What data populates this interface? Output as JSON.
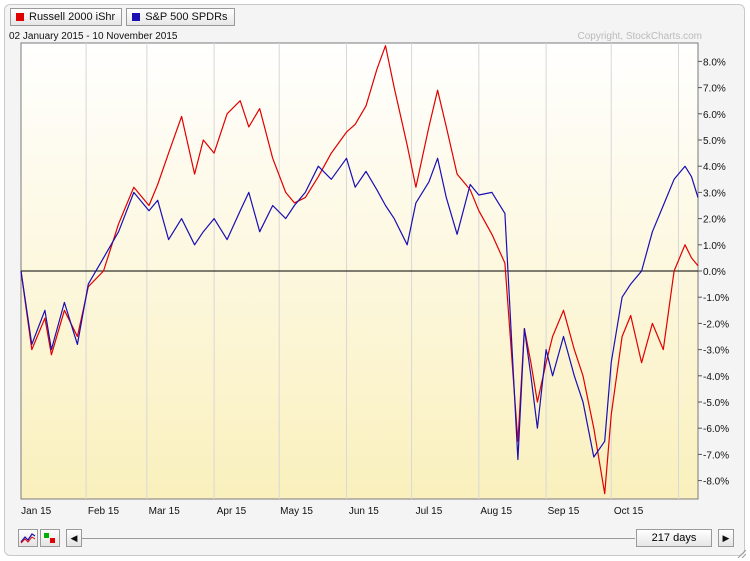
{
  "legend": [
    {
      "label": "Russell 2000 iShr",
      "color": "#e00000"
    },
    {
      "label": "S&P 500 SPDRs",
      "color": "#1a0fb3"
    }
  ],
  "date_range": "02 January 2015 - 10 November 2015",
  "copyright": "Copyright, StockCharts.com",
  "controls": {
    "days": "217 days",
    "scroll_left_icon": "left-arrow-icon",
    "scroll_right_icon": "right-arrow-icon"
  },
  "colors": {
    "plot_gradient_top": "#ffffff",
    "plot_gradient_bottom": "#faf0bd",
    "zero_line": "#000000"
  },
  "chart_data": {
    "type": "line",
    "ylim": [
      -8.8,
      8.8
    ],
    "ytick_values": [
      8,
      7,
      6,
      5,
      4,
      3,
      2,
      1,
      0,
      -1,
      -2,
      -3,
      -4,
      -5,
      -6,
      -7,
      -8
    ],
    "ytick_labels": [
      "8.0%",
      "7.0%",
      "6.0%",
      "5.0%",
      "4.0%",
      "3.0%",
      "2.0%",
      "1.0%",
      "0.0%",
      "-1.0%",
      "-2.0%",
      "-3.0%",
      "-4.0%",
      "-5.0%",
      "-6.0%",
      "-7.0%",
      "-8.0%"
    ],
    "x_axis_start": "2015-01-02",
    "x_axis_end": "2015-11-10",
    "xtick_labels": [
      "Jan 15",
      "Feb 15",
      "Mar 15",
      "Apr 15",
      "May 15",
      "Jun 15",
      "Jul 15",
      "Aug 15",
      "Sep 15",
      "Oct 15"
    ],
    "xtick_dates": [
      "2015-01-09",
      "2015-02-09",
      "2015-03-09",
      "2015-04-09",
      "2015-05-09",
      "2015-06-09",
      "2015-07-09",
      "2015-08-09",
      "2015-09-09",
      "2015-10-09"
    ],
    "grid": "vertical lines at month starts",
    "series": [
      {
        "name": "Russell 2000 iShr",
        "color": "#e00000",
        "x": [
          "2015-01-02",
          "2015-01-07",
          "2015-01-13",
          "2015-01-16",
          "2015-01-22",
          "2015-01-28",
          "2015-02-02",
          "2015-02-09",
          "2015-02-16",
          "2015-02-23",
          "2015-03-02",
          "2015-03-06",
          "2015-03-11",
          "2015-03-17",
          "2015-03-23",
          "2015-03-27",
          "2015-04-01",
          "2015-04-07",
          "2015-04-13",
          "2015-04-17",
          "2015-04-22",
          "2015-04-28",
          "2015-05-04",
          "2015-05-08",
          "2015-05-13",
          "2015-05-19",
          "2015-05-25",
          "2015-06-01",
          "2015-06-05",
          "2015-06-10",
          "2015-06-15",
          "2015-06-19",
          "2015-06-23",
          "2015-06-29",
          "2015-07-03",
          "2015-07-09",
          "2015-07-13",
          "2015-07-17",
          "2015-07-22",
          "2015-07-28",
          "2015-08-01",
          "2015-08-07",
          "2015-08-13",
          "2015-08-19",
          "2015-08-22",
          "2015-08-25",
          "2015-08-28",
          "2015-09-01",
          "2015-09-04",
          "2015-09-09",
          "2015-09-14",
          "2015-09-18",
          "2015-09-23",
          "2015-09-28",
          "2015-10-01",
          "2015-10-06",
          "2015-10-10",
          "2015-10-15",
          "2015-10-20",
          "2015-10-25",
          "2015-10-30",
          "2015-11-04",
          "2015-11-07",
          "2015-11-10"
        ],
        "y": [
          0,
          -3,
          -1.8,
          -3.2,
          -1.5,
          -2.5,
          -0.6,
          0,
          1.8,
          3.2,
          2.5,
          3.3,
          4.5,
          5.9,
          3.7,
          5,
          4.5,
          6,
          6.5,
          5.5,
          6.2,
          4.3,
          3,
          2.6,
          2.8,
          3.6,
          4.5,
          5.3,
          5.6,
          6.3,
          7.7,
          8.6,
          7,
          4.8,
          3.2,
          5.5,
          6.9,
          5.5,
          3.7,
          3.1,
          2.3,
          1.4,
          0.3,
          -6.5,
          -2.2,
          -3.5,
          -5,
          -3.5,
          -2.5,
          -1.5,
          -3,
          -4,
          -6,
          -8.5,
          -5.5,
          -2.5,
          -1.7,
          -3.5,
          -2,
          -3,
          0,
          1,
          0.5,
          0.2
        ]
      },
      {
        "name": "S&P 500 SPDRs",
        "color": "#1a0fb3",
        "x": [
          "2015-01-02",
          "2015-01-07",
          "2015-01-13",
          "2015-01-16",
          "2015-01-22",
          "2015-01-28",
          "2015-02-02",
          "2015-02-09",
          "2015-02-16",
          "2015-02-23",
          "2015-03-02",
          "2015-03-06",
          "2015-03-11",
          "2015-03-17",
          "2015-03-23",
          "2015-03-27",
          "2015-04-01",
          "2015-04-07",
          "2015-04-13",
          "2015-04-17",
          "2015-04-22",
          "2015-04-28",
          "2015-05-04",
          "2015-05-08",
          "2015-05-13",
          "2015-05-19",
          "2015-05-25",
          "2015-06-01",
          "2015-06-05",
          "2015-06-10",
          "2015-06-15",
          "2015-06-19",
          "2015-06-23",
          "2015-06-29",
          "2015-07-03",
          "2015-07-09",
          "2015-07-13",
          "2015-07-17",
          "2015-07-22",
          "2015-07-28",
          "2015-08-01",
          "2015-08-07",
          "2015-08-13",
          "2015-08-19",
          "2015-08-22",
          "2015-08-25",
          "2015-08-28",
          "2015-09-01",
          "2015-09-04",
          "2015-09-09",
          "2015-09-14",
          "2015-09-18",
          "2015-09-23",
          "2015-09-28",
          "2015-10-01",
          "2015-10-06",
          "2015-10-10",
          "2015-10-15",
          "2015-10-20",
          "2015-10-25",
          "2015-10-30",
          "2015-11-04",
          "2015-11-07",
          "2015-11-10"
        ],
        "y": [
          0,
          -2.8,
          -1.5,
          -3,
          -1.2,
          -2.8,
          -0.5,
          0.5,
          1.5,
          3,
          2.3,
          2.7,
          1.2,
          2,
          1,
          1.5,
          2,
          1.2,
          2.3,
          3,
          1.5,
          2.5,
          2,
          2.5,
          3,
          4,
          3.5,
          4.3,
          3.2,
          3.8,
          3.1,
          2.5,
          2,
          1,
          2.6,
          3.4,
          4.3,
          2.8,
          1.4,
          3.3,
          2.9,
          3,
          2.2,
          -7.2,
          -2.2,
          -4,
          -6,
          -3,
          -4,
          -2.5,
          -4,
          -5,
          -7.1,
          -6.5,
          -3.5,
          -1,
          -0.5,
          0,
          1.5,
          2.5,
          3.5,
          4,
          3.6,
          2.8
        ]
      }
    ]
  }
}
